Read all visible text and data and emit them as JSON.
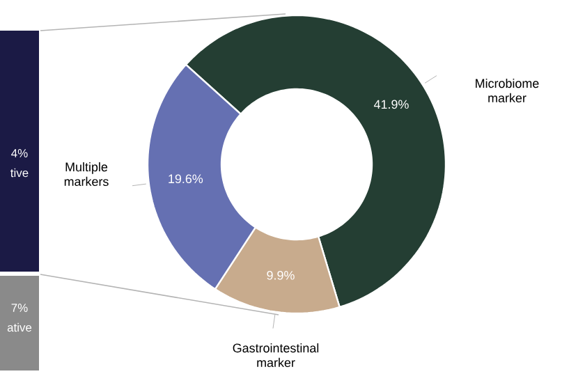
{
  "chart_data": {
    "type": "donut",
    "categories": [
      "Microbiome marker",
      "Gastrointestinal marker",
      "Multiple markers"
    ],
    "values": [
      41.9,
      9.9,
      19.6
    ],
    "colors": [
      "#243e33",
      "#c8ab8d",
      "#6570b2"
    ],
    "value_labels": [
      "41.9%",
      "9.9%",
      "19.6%"
    ],
    "annotations": [
      "4%",
      "tive",
      "7%",
      "ative"
    ]
  }
}
